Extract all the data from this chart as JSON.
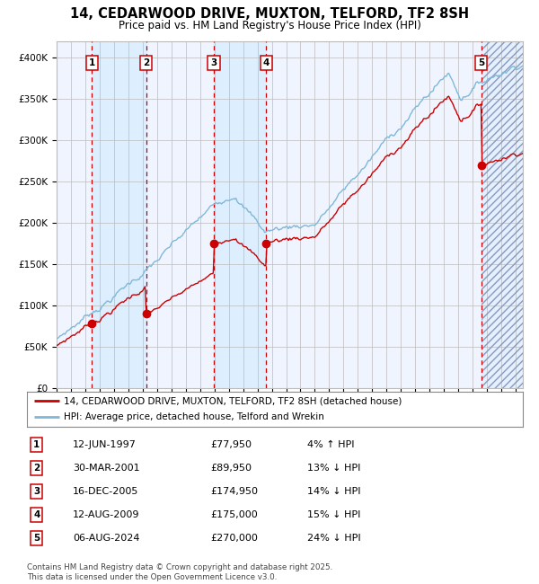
{
  "title": "14, CEDARWOOD DRIVE, MUXTON, TELFORD, TF2 8SH",
  "subtitle": "Price paid vs. HM Land Registry's House Price Index (HPI)",
  "ylim": [
    0,
    420000
  ],
  "yticks": [
    0,
    50000,
    100000,
    150000,
    200000,
    250000,
    300000,
    350000,
    400000
  ],
  "ytick_labels": [
    "£0",
    "£50K",
    "£100K",
    "£150K",
    "£200K",
    "£250K",
    "£300K",
    "£350K",
    "£400K"
  ],
  "xlim_start": 1995.0,
  "xlim_end": 2027.5,
  "sale_dates": [
    1997.45,
    2001.25,
    2005.96,
    2009.62,
    2024.59
  ],
  "sale_prices": [
    77950,
    89950,
    174950,
    175000,
    270000
  ],
  "sale_labels": [
    "1",
    "2",
    "3",
    "4",
    "5"
  ],
  "sale_table": [
    [
      "1",
      "12-JUN-1997",
      "£77,950",
      "4% ↑ HPI"
    ],
    [
      "2",
      "30-MAR-2001",
      "£89,950",
      "13% ↓ HPI"
    ],
    [
      "3",
      "16-DEC-2005",
      "£174,950",
      "14% ↓ HPI"
    ],
    [
      "4",
      "12-AUG-2009",
      "£175,000",
      "15% ↓ HPI"
    ],
    [
      "5",
      "06-AUG-2024",
      "£270,000",
      "24% ↓ HPI"
    ]
  ],
  "hpi_color": "#7fb8d8",
  "price_color": "#cc0000",
  "vline_color": "#cc0000",
  "shade_color": "#ddeeff",
  "grid_color": "#bbbbbb",
  "bg_color": "#ffffff",
  "plot_bg_color": "#f0f4ff",
  "legend_line1": "14, CEDARWOOD DRIVE, MUXTON, TELFORD, TF2 8SH (detached house)",
  "legend_line2": "HPI: Average price, detached house, Telford and Wrekin",
  "footer": "Contains HM Land Registry data © Crown copyright and database right 2025.\nThis data is licensed under the Open Government Licence v3.0."
}
